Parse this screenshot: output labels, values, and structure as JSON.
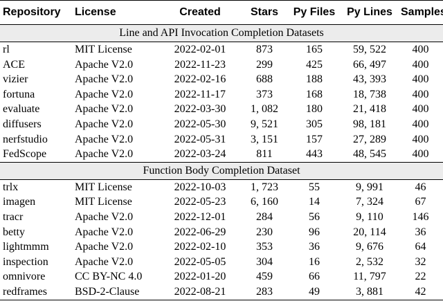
{
  "headers": [
    "Repository",
    "License",
    "Created",
    "Stars",
    "Py Files",
    "Py Lines",
    "Samples"
  ],
  "sections": [
    {
      "title": "Line and API Invocation Completion Datasets",
      "rows": [
        [
          "rl",
          "MIT License",
          "2022-02-01",
          "873",
          "165",
          "59, 522",
          "400"
        ],
        [
          "ACE",
          "Apache V2.0",
          "2022-11-23",
          "299",
          "425",
          "66, 497",
          "400"
        ],
        [
          "vizier",
          "Apache V2.0",
          "2022-02-16",
          "688",
          "188",
          "43, 393",
          "400"
        ],
        [
          "fortuna",
          "Apache V2.0",
          "2022-11-17",
          "373",
          "168",
          "18, 738",
          "400"
        ],
        [
          "evaluate",
          "Apache V2.0",
          "2022-03-30",
          "1, 082",
          "180",
          "21, 418",
          "400"
        ],
        [
          "diffusers",
          "Apache V2.0",
          "2022-05-30",
          "9, 521",
          "305",
          "98, 181",
          "400"
        ],
        [
          "nerfstudio",
          "Apache V2.0",
          "2022-05-31",
          "3, 151",
          "157",
          "27, 289",
          "400"
        ],
        [
          "FedScope",
          "Apache V2.0",
          "2022-03-24",
          "811",
          "443",
          "48, 545",
          "400"
        ]
      ]
    },
    {
      "title": "Function Body Completion Dataset",
      "rows": [
        [
          "trlx",
          "MIT License",
          "2022-10-03",
          "1, 723",
          "55",
          "9, 991",
          "46"
        ],
        [
          "imagen",
          "MIT License",
          "2022-05-23",
          "6, 160",
          "14",
          "7, 324",
          "67"
        ],
        [
          "tracr",
          "Apache V2.0",
          "2022-12-01",
          "284",
          "56",
          "9, 110",
          "146"
        ],
        [
          "betty",
          "Apache V2.0",
          "2022-06-29",
          "230",
          "96",
          "20, 114",
          "36"
        ],
        [
          "lightmmm",
          "Apache V2.0",
          "2022-02-10",
          "353",
          "36",
          "9, 676",
          "64"
        ],
        [
          "inspection",
          "Apache V2.0",
          "2022-05-05",
          "304",
          "16",
          "2, 532",
          "32"
        ],
        [
          "omnivore",
          "CC BY-NC 4.0",
          "2022-01-20",
          "459",
          "66",
          "11, 797",
          "22"
        ],
        [
          "redframes",
          "BSD-2-Clause",
          "2022-08-21",
          "283",
          "49",
          "3, 881",
          "42"
        ]
      ]
    }
  ]
}
